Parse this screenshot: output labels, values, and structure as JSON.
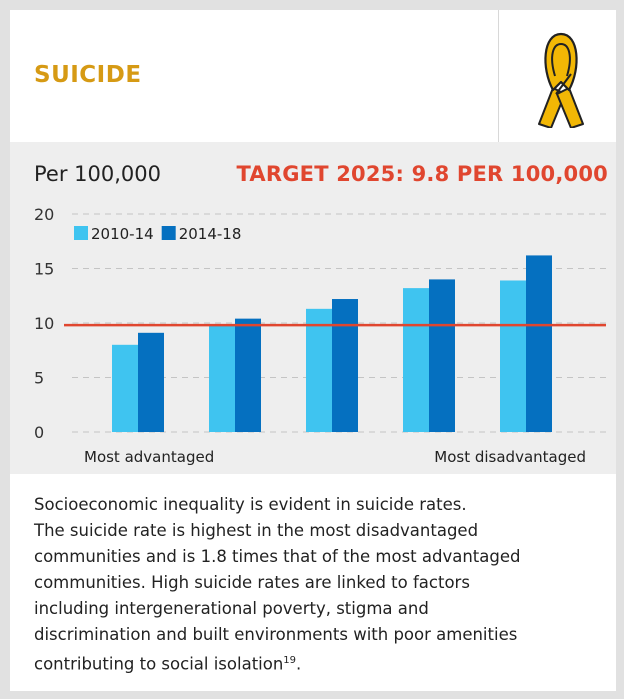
{
  "header": {
    "title": "SUICIDE",
    "icon": "awareness-ribbon-icon",
    "accent_color": "#d69a14"
  },
  "chart_labels": {
    "unit": "Per 100,000",
    "target": "TARGET 2025: 9.8 PER 100,000",
    "x_left": "Most advantaged",
    "x_right": "Most disadvantaged"
  },
  "chart_data": {
    "type": "bar",
    "categories": [
      "",
      "",
      "",
      "",
      ""
    ],
    "series": [
      {
        "name": "2010-14",
        "values": [
          8.0,
          9.8,
          11.3,
          13.2,
          13.9
        ],
        "color": "#3fc4f0"
      },
      {
        "name": "2014-18",
        "values": [
          9.1,
          10.4,
          12.2,
          14.0,
          16.2
        ],
        "color": "#0570c0"
      }
    ],
    "target": {
      "value": 9.8,
      "color": "#e0462f"
    },
    "ylim": [
      0,
      20
    ],
    "yticks": [
      0,
      5,
      10,
      15,
      20
    ],
    "grid": true,
    "legend_position": "top-left"
  },
  "description": {
    "lines": [
      "Socioeconomic inequality is evident in suicide rates.",
      "The suicide rate is highest in the most disadvantaged",
      "communities and is 1.8 times that of the most advantaged",
      "communities. High suicide rates are linked to factors",
      "including intergenerational poverty, stigma and",
      "discrimination and built environments with poor amenities"
    ],
    "last_line": "contributing to social isolation",
    "footnote": "19",
    "last_line_end": "."
  }
}
